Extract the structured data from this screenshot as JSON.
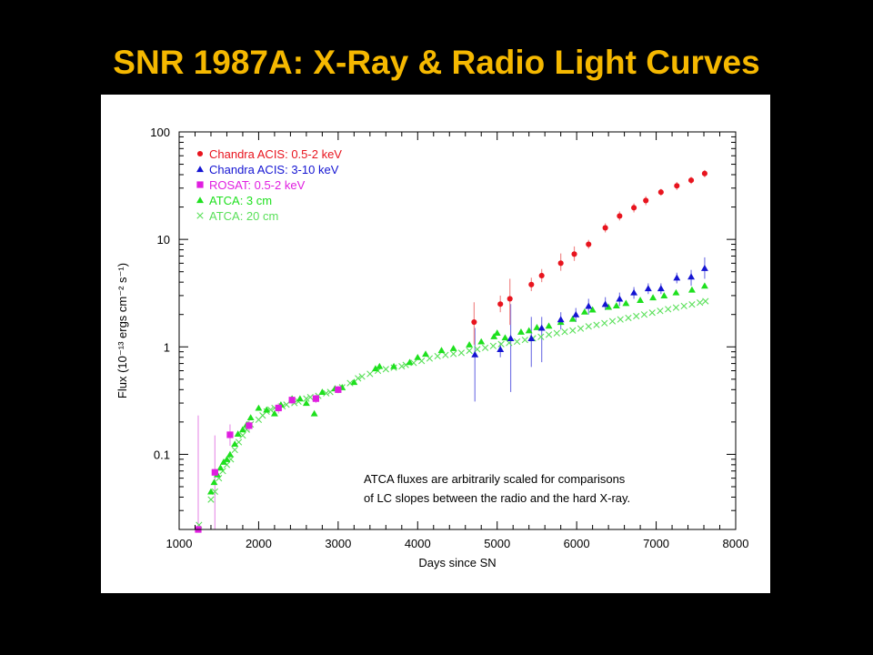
{
  "slide": {
    "title": "SNR 1987A:  X-Ray & Radio Light Curves"
  },
  "colors": {
    "background": "#000000",
    "title": "#f5b800",
    "panel": "#ffffff"
  },
  "chart_data": {
    "type": "scatter",
    "xlabel": "Days since SN",
    "ylabel": "Flux (10⁻¹³ ergs cm⁻² s⁻¹)",
    "xlim": [
      1000,
      8000
    ],
    "ylim": [
      0.02,
      100
    ],
    "y_scale": "log",
    "x_ticks": [
      1000,
      2000,
      3000,
      4000,
      5000,
      6000,
      7000,
      8000
    ],
    "y_ticks": [
      0.1,
      1,
      10,
      100
    ],
    "y_tick_labels": [
      "0.1",
      "1",
      "10",
      "100"
    ],
    "legend_position": "top-left",
    "annotation": [
      "ATCA fluxes are arbitrarily scaled for comparisons",
      "of LC slopes between the radio and the hard X-ray."
    ],
    "series": [
      {
        "name": "Chandra ACIS: 0.5-2 keV",
        "marker": "circle",
        "color": "#e8141e",
        "error_color": "#f08a8a",
        "points": [
          [
            4710,
            1.7,
            1.05,
            2.6
          ],
          [
            5040,
            2.5,
            2.1,
            3.0
          ],
          [
            5160,
            2.8,
            1.6,
            4.3
          ],
          [
            5430,
            3.8,
            3.3,
            4.4
          ],
          [
            5560,
            4.6,
            4.0,
            5.3
          ],
          [
            5800,
            6.0,
            5.1,
            7.4
          ],
          [
            5970,
            7.3,
            6.3,
            8.6
          ],
          [
            6150,
            9.0,
            8.2,
            9.9
          ],
          [
            6360,
            12.8,
            11.6,
            14.1
          ],
          [
            6540,
            16.5,
            15.0,
            18.2
          ],
          [
            6720,
            19.7,
            17.8,
            21.6
          ],
          [
            6870,
            23.0,
            20.8,
            25.2
          ],
          [
            7060,
            27.5,
            25.5,
            29.5
          ],
          [
            7260,
            31.5,
            28.8,
            34.2
          ],
          [
            7440,
            35.5,
            32.8,
            38.2
          ],
          [
            7610,
            41.0,
            37.8,
            44.2
          ]
        ]
      },
      {
        "name": "Chandra ACIS: 3-10 keV",
        "marker": "triangle",
        "color": "#1414d2",
        "error_color": "#7a7ae6",
        "points": [
          [
            4720,
            0.85,
            0.31,
            1.5
          ],
          [
            5040,
            0.95,
            0.8,
            1.1
          ],
          [
            5170,
            1.2,
            0.38,
            2.5
          ],
          [
            5430,
            1.2,
            0.65,
            1.9
          ],
          [
            5560,
            1.5,
            0.72,
            1.9
          ],
          [
            5800,
            1.8,
            1.45,
            2.1
          ],
          [
            5990,
            2.0,
            1.7,
            2.3
          ],
          [
            6150,
            2.4,
            2.0,
            2.8
          ],
          [
            6360,
            2.5,
            2.2,
            2.9
          ],
          [
            6540,
            2.8,
            2.4,
            3.2
          ],
          [
            6720,
            3.2,
            2.8,
            3.6
          ],
          [
            6900,
            3.5,
            3.1,
            3.9
          ],
          [
            7060,
            3.5,
            3.1,
            3.9
          ],
          [
            7260,
            4.4,
            3.9,
            4.9
          ],
          [
            7440,
            4.5,
            3.7,
            5.2
          ],
          [
            7610,
            5.4,
            4.3,
            6.8
          ]
        ]
      },
      {
        "name": "ROSAT: 0.5-2 keV",
        "marker": "square",
        "color": "#e01ee0",
        "error_color": "#e896e8",
        "points": [
          [
            1240,
            0.02,
            0.02,
            0.23
          ],
          [
            1450,
            0.068,
            0.02,
            0.15
          ],
          [
            1640,
            0.152,
            0.12,
            0.19
          ],
          [
            1880,
            0.185,
            0.16,
            0.21
          ],
          [
            2250,
            0.27,
            0.24,
            0.3
          ],
          [
            2420,
            0.32,
            0.29,
            0.35
          ],
          [
            2720,
            0.33,
            0.3,
            0.36
          ],
          [
            3000,
            0.4,
            0.37,
            0.43
          ]
        ]
      },
      {
        "name": "ATCA: 3 cm",
        "marker": "triangle",
        "color": "#1ee01e",
        "points": [
          [
            1400,
            0.045
          ],
          [
            1440,
            0.055
          ],
          [
            1480,
            0.065
          ],
          [
            1520,
            0.075
          ],
          [
            1560,
            0.085
          ],
          [
            1600,
            0.09
          ],
          [
            1640,
            0.1
          ],
          [
            1700,
            0.125
          ],
          [
            1740,
            0.155
          ],
          [
            1800,
            0.17
          ],
          [
            1850,
            0.19
          ],
          [
            1900,
            0.22
          ],
          [
            2000,
            0.27
          ],
          [
            2100,
            0.26
          ],
          [
            2200,
            0.24
          ],
          [
            2280,
            0.29
          ],
          [
            2420,
            0.33
          ],
          [
            2520,
            0.33
          ],
          [
            2600,
            0.3
          ],
          [
            2700,
            0.24
          ],
          [
            2800,
            0.38
          ],
          [
            2960,
            0.41
          ],
          [
            3050,
            0.42
          ],
          [
            3200,
            0.47
          ],
          [
            3470,
            0.63
          ],
          [
            3520,
            0.66
          ],
          [
            3700,
            0.66
          ],
          [
            3900,
            0.72
          ],
          [
            4000,
            0.8
          ],
          [
            4100,
            0.86
          ],
          [
            4300,
            0.93
          ],
          [
            4450,
            0.97
          ],
          [
            4650,
            1.05
          ],
          [
            4800,
            1.12
          ],
          [
            4960,
            1.25
          ],
          [
            5000,
            1.35
          ],
          [
            5100,
            1.22
          ],
          [
            5300,
            1.38
          ],
          [
            5400,
            1.42
          ],
          [
            5500,
            1.52
          ],
          [
            5650,
            1.57
          ],
          [
            5800,
            1.7
          ],
          [
            5950,
            1.82
          ],
          [
            6100,
            2.12
          ],
          [
            6200,
            2.22
          ],
          [
            6400,
            2.35
          ],
          [
            6500,
            2.42
          ],
          [
            6620,
            2.55
          ],
          [
            6800,
            2.72
          ],
          [
            6960,
            2.88
          ],
          [
            7100,
            3.0
          ],
          [
            7250,
            3.2
          ],
          [
            7450,
            3.4
          ],
          [
            7610,
            3.7
          ]
        ]
      },
      {
        "name": "ATCA: 20 cm",
        "marker": "cross",
        "color": "#5ae05a",
        "points": [
          [
            1250,
            0.022
          ],
          [
            1400,
            0.038
          ],
          [
            1450,
            0.045
          ],
          [
            1500,
            0.06
          ],
          [
            1550,
            0.07
          ],
          [
            1600,
            0.08
          ],
          [
            1650,
            0.09
          ],
          [
            1700,
            0.11
          ],
          [
            1750,
            0.13
          ],
          [
            1800,
            0.15
          ],
          [
            1850,
            0.17
          ],
          [
            1900,
            0.19
          ],
          [
            2000,
            0.21
          ],
          [
            2050,
            0.23
          ],
          [
            2100,
            0.25
          ],
          [
            2150,
            0.26
          ],
          [
            2200,
            0.27
          ],
          [
            2300,
            0.28
          ],
          [
            2350,
            0.29
          ],
          [
            2450,
            0.3
          ],
          [
            2500,
            0.31
          ],
          [
            2600,
            0.33
          ],
          [
            2650,
            0.34
          ],
          [
            2750,
            0.35
          ],
          [
            2850,
            0.37
          ],
          [
            2900,
            0.38
          ],
          [
            3000,
            0.4
          ],
          [
            3050,
            0.42
          ],
          [
            3150,
            0.46
          ],
          [
            3250,
            0.51
          ],
          [
            3300,
            0.53
          ],
          [
            3400,
            0.56
          ],
          [
            3500,
            0.6
          ],
          [
            3600,
            0.62
          ],
          [
            3700,
            0.64
          ],
          [
            3800,
            0.66
          ],
          [
            3850,
            0.68
          ],
          [
            3950,
            0.71
          ],
          [
            4050,
            0.74
          ],
          [
            4150,
            0.78
          ],
          [
            4250,
            0.82
          ],
          [
            4350,
            0.84
          ],
          [
            4450,
            0.86
          ],
          [
            4550,
            0.88
          ],
          [
            4650,
            0.92
          ],
          [
            4750,
            0.95
          ],
          [
            4850,
            0.98
          ],
          [
            4950,
            1.02
          ],
          [
            5050,
            1.06
          ],
          [
            5150,
            1.09
          ],
          [
            5250,
            1.12
          ],
          [
            5350,
            1.16
          ],
          [
            5450,
            1.2
          ],
          [
            5550,
            1.24
          ],
          [
            5650,
            1.3
          ],
          [
            5750,
            1.34
          ],
          [
            5850,
            1.38
          ],
          [
            5950,
            1.42
          ],
          [
            6050,
            1.48
          ],
          [
            6150,
            1.55
          ],
          [
            6250,
            1.6
          ],
          [
            6350,
            1.66
          ],
          [
            6450,
            1.73
          ],
          [
            6550,
            1.8
          ],
          [
            6650,
            1.86
          ],
          [
            6750,
            1.93
          ],
          [
            6850,
            2.0
          ],
          [
            6950,
            2.08
          ],
          [
            7050,
            2.16
          ],
          [
            7150,
            2.24
          ],
          [
            7250,
            2.32
          ],
          [
            7350,
            2.4
          ],
          [
            7450,
            2.48
          ],
          [
            7550,
            2.58
          ],
          [
            7620,
            2.66
          ]
        ]
      }
    ]
  }
}
